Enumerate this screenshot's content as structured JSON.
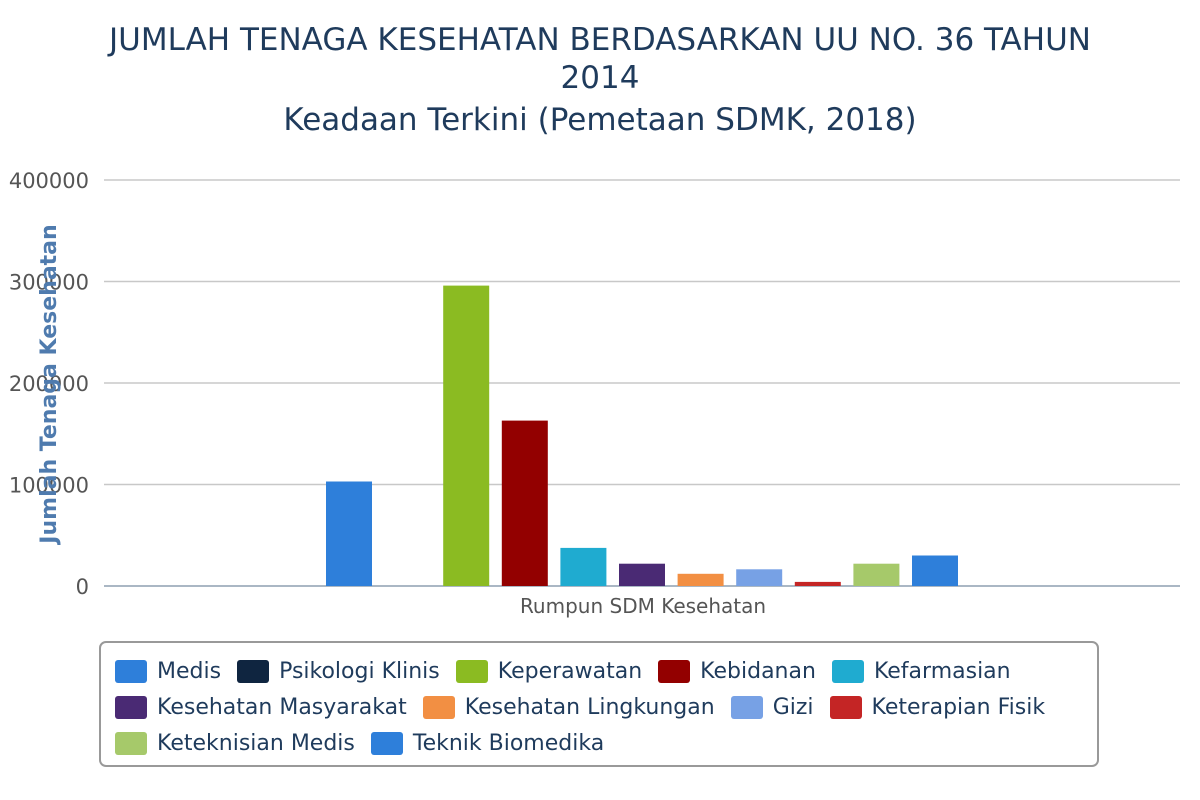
{
  "chart_data": {
    "type": "bar",
    "title": [
      "JUMLAH TENAGA KESEHATAN BERDASARKAN UU NO. 36 TAHUN",
      "2014"
    ],
    "subtitle": "Keadaan Terkini (Pemetaan SDMK, 2018)",
    "xlabel": "Rumpun SDM Kesehatan",
    "ylabel": "Jumlah Tenaga Kesehatan",
    "ylim": [
      0,
      400000
    ],
    "yticks": [
      "0",
      "100000",
      "200000",
      "300000",
      "400000"
    ],
    "grid": true,
    "legend_position": "bottom",
    "series": [
      {
        "name": "Medis",
        "value": 103000,
        "color": "#2e7fda"
      },
      {
        "name": "Psikologi Klinis",
        "value": 0,
        "color": "#0f2540"
      },
      {
        "name": "Keperawatan",
        "value": 296000,
        "color": "#8bbb22"
      },
      {
        "name": "Kebidanan",
        "value": 163000,
        "color": "#930000"
      },
      {
        "name": "Kefarmasian",
        "value": 37500,
        "color": "#1fabd0"
      },
      {
        "name": "Kesehatan Masyarakat",
        "value": 22000,
        "color": "#4a2a74"
      },
      {
        "name": "Kesehatan Lingkungan",
        "value": 12000,
        "color": "#f28f43"
      },
      {
        "name": "Gizi",
        "value": 16500,
        "color": "#77a1e5"
      },
      {
        "name": "Keterapian Fisik",
        "value": 4000,
        "color": "#c42525"
      },
      {
        "name": "Keteknisian Medis",
        "value": 22000,
        "color": "#a6c96a"
      },
      {
        "name": "Teknik Biomedika",
        "value": 30000,
        "color": "#2e7fda"
      }
    ]
  }
}
